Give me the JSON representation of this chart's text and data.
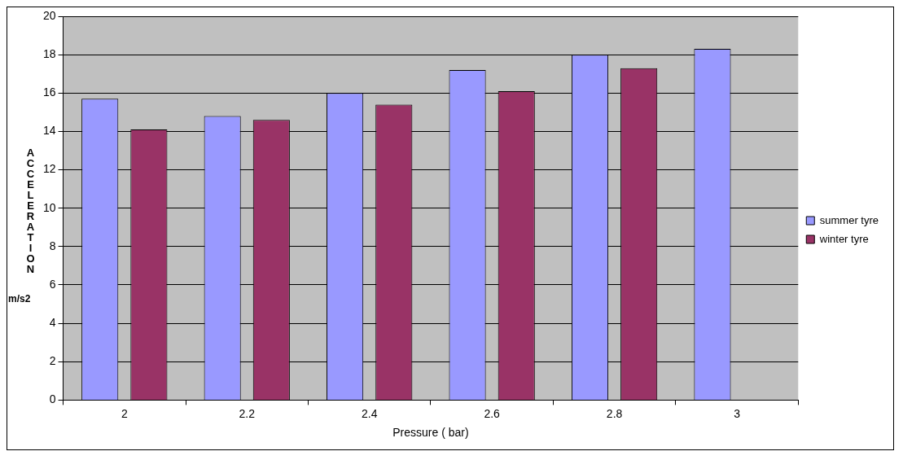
{
  "chart_data": {
    "type": "bar",
    "xlabel": "Pressure ( bar)",
    "ylabel": "ACCELERATION",
    "annotations": [
      "m/s2"
    ],
    "categories": [
      "2",
      "2.2",
      "2.4",
      "2.6",
      "2.8",
      "3"
    ],
    "series": [
      {
        "name": "summer tyre",
        "color": "#9999ff",
        "values": [
          15.7,
          14.8,
          16.0,
          17.2,
          18.0,
          18.3
        ]
      },
      {
        "name": "winter tyre",
        "color": "#993366",
        "values": [
          14.1,
          14.6,
          15.4,
          16.1,
          17.3,
          null
        ]
      }
    ],
    "ylim": [
      0,
      20
    ],
    "yticks": [
      0,
      2,
      4,
      6,
      8,
      10,
      12,
      14,
      16,
      18,
      20
    ],
    "grid": "y",
    "legend": "right"
  }
}
